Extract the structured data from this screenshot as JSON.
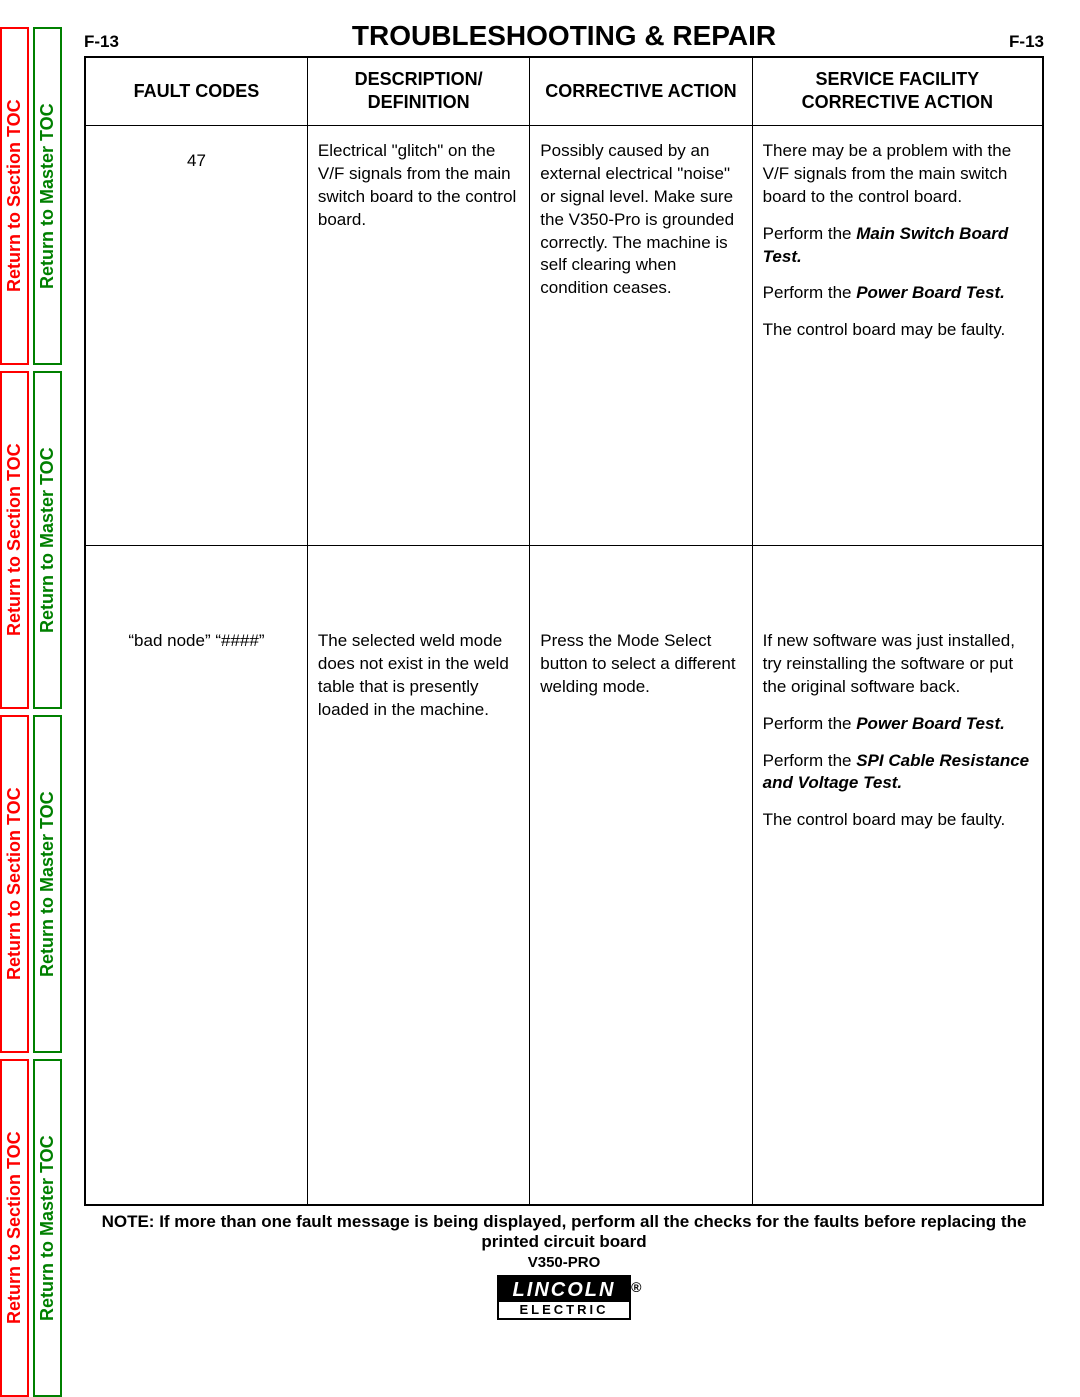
{
  "page_ref_left": "F-13",
  "page_ref_right": "F-13",
  "title": "TROUBLESHOOTING & REPAIR",
  "side_links": {
    "section": "Return to Section TOC",
    "master": "Return to Master TOC"
  },
  "table": {
    "headers": {
      "fault": "FAULT CODES",
      "desc": "DESCRIPTION/ DEFINITION",
      "corr": "CORRECTIVE ACTION",
      "svc": "SERVICE FACILITY CORRECTIVE ACTION"
    },
    "rows": [
      {
        "fault": "47",
        "desc": "Electrical \"glitch\" on the V/F signals from the main switch board to the control board.",
        "corr": "Possibly caused by an external electrical \"noise\" or signal level. Make sure the V350-Pro is grounded correctly. The machine is self clearing when condition ceases.",
        "svc_p1": "There may be a problem with the V/F signals from the main switch board to the control board.",
        "svc_p2a": "Perform the ",
        "svc_p2b": "Main Switch Board Test.",
        "svc_p3a": "Perform the ",
        "svc_p3b": "Power Board Test.",
        "svc_p4": "The control board may be faulty."
      },
      {
        "fault": "“bad node” “####”",
        "desc": "The selected weld mode does not exist in the weld table that is presently loaded in the machine.",
        "corr": "Press the Mode Select button to select a different welding mode.",
        "svc_p1": "If new software was just installed, try reinstalling the software or put the original software back.",
        "svc_p2a": "Perform the ",
        "svc_p2b": "Power Board Test.",
        "svc_p3a": "Perform the ",
        "svc_p3b": "SPI Cable Resistance and Voltage Test.",
        "svc_p4": "The control board may be faulty."
      }
    ]
  },
  "note": {
    "label": "NOTE:",
    "body": "If more than one fault message is being displayed, perform all the checks for the faults before replacing the printed circuit board"
  },
  "model": "V350-PRO",
  "logo": {
    "top": "LINCOLN",
    "bottom": "ELECTRIC",
    "reg": "®"
  },
  "colors": {
    "red": "#ff0000",
    "green": "#008000",
    "black": "#000000",
    "white": "#ffffff"
  }
}
